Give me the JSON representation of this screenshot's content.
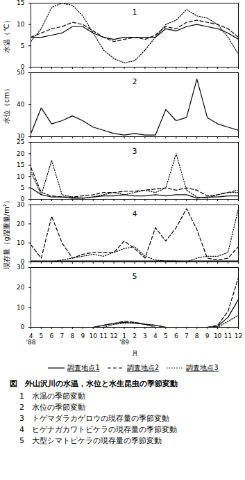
{
  "chart_data": [
    {
      "type": "line",
      "title": "1",
      "ylabel": "水温（℃）",
      "categories": [
        "4",
        "5",
        "6",
        "7",
        "8",
        "9",
        "10",
        "11",
        "12",
        "1",
        "2",
        "3",
        "4",
        "5",
        "6",
        "7",
        "8",
        "9",
        "10",
        "11",
        "12"
      ],
      "ylim": [
        0,
        15
      ],
      "yticks": [
        0,
        5,
        10,
        15
      ],
      "tick_labels": "y",
      "series": [
        {
          "name": "調査地点1",
          "color": "#000000",
          "line_style": "solid",
          "values": [
            7,
            7,
            7.5,
            8,
            9.5,
            9.5,
            8,
            7,
            6.5,
            7,
            7,
            7,
            7,
            9,
            8.5,
            9.5,
            10,
            9.5,
            9,
            8,
            6.5
          ]
        },
        {
          "name": "調査地点2",
          "color": "#000000",
          "line_style": "dashed",
          "values": [
            7,
            8,
            9,
            9.5,
            10.5,
            10,
            8.5,
            7,
            6,
            6.5,
            7,
            6.5,
            7.5,
            9.5,
            9,
            10.5,
            11,
            10.5,
            10,
            9,
            7
          ]
        },
        {
          "name": "調査地点3",
          "color": "#000000",
          "line_style": "dotted",
          "values": [
            6,
            9,
            14,
            15,
            14.5,
            12,
            8,
            4,
            2,
            1,
            1.5,
            4,
            7,
            10,
            11,
            13.5,
            12,
            11.5,
            10,
            7,
            3
          ]
        }
      ]
    },
    {
      "type": "line",
      "title": "2",
      "ylabel": "水位（cm）",
      "categories": [
        "4",
        "5",
        "6",
        "7",
        "8",
        "9",
        "10",
        "11",
        "12",
        "1",
        "2",
        "3",
        "4",
        "5",
        "6",
        "7",
        "8",
        "9",
        "10",
        "11",
        "12"
      ],
      "ylim": [
        30,
        50
      ],
      "yticks": [
        30,
        40,
        50
      ],
      "tick_labels": "y",
      "series": [
        {
          "color": "#000000",
          "line_style": "solid",
          "values": [
            31,
            39,
            34,
            35,
            36.5,
            35,
            33,
            32,
            31,
            30.5,
            31,
            30.5,
            30.5,
            38.5,
            35,
            36,
            48,
            36,
            34,
            33,
            32
          ]
        }
      ]
    },
    {
      "type": "line",
      "title": "3",
      "categories": [
        "4",
        "5",
        "6",
        "7",
        "8",
        "9",
        "10",
        "11",
        "12",
        "1",
        "2",
        "3",
        "4",
        "5",
        "6",
        "7",
        "8",
        "9",
        "10",
        "11",
        "12"
      ],
      "ylim": [
        0,
        25
      ],
      "yticks": [
        0,
        5,
        10,
        15,
        20,
        25
      ],
      "tick_labels": "y",
      "series": [
        {
          "name": "調査地点1",
          "color": "#000000",
          "line_style": "solid",
          "values": [
            5,
            2,
            1,
            1,
            0.5,
            0.5,
            1,
            1.5,
            1.5,
            2,
            1.5,
            1.5,
            2,
            1.5,
            2,
            2,
            0.5,
            1,
            1,
            1.5,
            1.5
          ]
        },
        {
          "name": "調査地点2",
          "color": "#000000",
          "line_style": "dashed",
          "values": [
            14,
            3,
            1.5,
            1,
            1,
            1.5,
            2,
            3,
            3,
            3.5,
            3.5,
            4,
            4.5,
            5,
            4,
            5,
            4,
            1.5,
            2,
            3,
            4
          ]
        },
        {
          "name": "調査地点3",
          "color": "#000000",
          "line_style": "dotted",
          "values": [
            12,
            2,
            17,
            2,
            1,
            0.5,
            1,
            2,
            3,
            2,
            3,
            4,
            3,
            5,
            20,
            4,
            1,
            0.5,
            2,
            3,
            3
          ]
        }
      ]
    },
    {
      "type": "line",
      "title": "4",
      "ylabel": "現存量（g湿重量/m²）",
      "categories": [
        "4",
        "5",
        "6",
        "7",
        "8",
        "9",
        "10",
        "11",
        "12",
        "1",
        "2",
        "3",
        "4",
        "5",
        "6",
        "7",
        "8",
        "9",
        "10",
        "11",
        "12"
      ],
      "ylim": [
        0,
        30
      ],
      "yticks": [
        0,
        10,
        20,
        30
      ],
      "tick_labels": "y",
      "series": [
        {
          "name": "調査地点1",
          "color": "#000000",
          "line_style": "solid",
          "values": [
            0.5,
            0.5,
            0.5,
            0.5,
            0.5,
            0.5,
            0.5,
            0.5,
            0.5,
            0.5,
            0.5,
            0.5,
            0.5,
            0.5,
            0.5,
            0.5,
            0.5,
            0.5,
            0.5,
            0.5,
            0.5
          ]
        },
        {
          "name": "調査地点2",
          "color": "#000000",
          "line_style": "dashed",
          "values": [
            9,
            2,
            24,
            10,
            2,
            4,
            5,
            5,
            5,
            11,
            7,
            2,
            18,
            11,
            18,
            28,
            17,
            2,
            1,
            2,
            8
          ]
        },
        {
          "name": "調査地点3",
          "color": "#000000",
          "line_style": "dotted",
          "values": [
            0,
            0,
            0,
            1,
            2,
            3,
            4,
            3,
            5,
            7,
            8,
            3,
            1,
            0.5,
            0.5,
            0,
            2,
            3,
            3,
            5,
            28
          ]
        }
      ]
    },
    {
      "type": "line",
      "title": "5",
      "xlabel": "月",
      "categories": [
        "4",
        "5",
        "6",
        "7",
        "8",
        "9",
        "10",
        "11",
        "12",
        "1",
        "2",
        "3",
        "4",
        "5",
        "6",
        "7",
        "8",
        "9",
        "10",
        "11",
        "12"
      ],
      "year_labels": [
        {
          "index": 0,
          "label": "'88"
        },
        {
          "index": 9,
          "label": "'89"
        }
      ],
      "ylim": [
        0,
        30
      ],
      "yticks": [
        0,
        10,
        20,
        30
      ],
      "series": [
        {
          "name": "調査地点1",
          "color": "#000000",
          "line_style": "solid",
          "values": [
            0,
            0,
            0,
            0,
            0,
            0,
            0,
            1,
            2,
            2.5,
            2,
            1.5,
            1,
            0,
            0,
            0,
            0,
            0,
            0.5,
            5,
            14
          ]
        },
        {
          "name": "調査地点2",
          "color": "#000000",
          "line_style": "dashed",
          "values": [
            0,
            0,
            0,
            0,
            0,
            0,
            0,
            1,
            2,
            3,
            2.5,
            1.5,
            1,
            0,
            0,
            0,
            0,
            0,
            1,
            8,
            25
          ]
        },
        {
          "name": "調査地点3",
          "color": "#000000",
          "line_style": "dotted",
          "values": [
            0,
            0,
            0,
            0,
            0,
            0,
            0,
            0,
            1.5,
            2,
            2.5,
            1.5,
            0,
            0,
            0,
            0,
            0,
            0,
            0,
            3,
            6
          ]
        }
      ]
    }
  ],
  "caption": {
    "title": "図　外山沢川の水温，水位と水生昆虫の季節変動",
    "items": [
      "1　水温の季節変動",
      "2　水位の季節変動",
      "3　トゲマダラカゲロウの現存量の季節変動",
      "4　ヒゲナガカワトビケラの現存量の季節変動",
      "5　大型シマトビケラの現存量の季節変動"
    ]
  }
}
